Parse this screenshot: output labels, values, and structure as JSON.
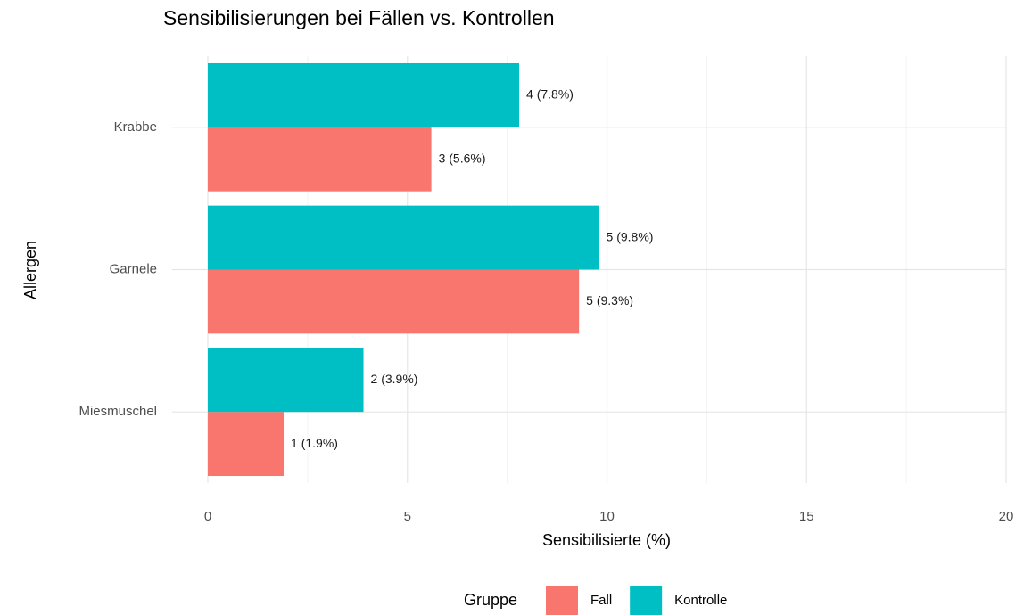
{
  "chart_data": {
    "type": "barh",
    "title": "Sensibilisierungen bei Fällen vs. Kontrollen",
    "x_label": "Sensibilisierte (%)",
    "y_label": "Allergen",
    "categories": [
      "Krabbe",
      "Garnele",
      "Miesmuschel"
    ],
    "series": [
      {
        "name": "Fall",
        "color": "#F8766D",
        "values": [
          5.6,
          9.3,
          1.9
        ],
        "value_labels": [
          "3 (5.6%)",
          "5 (9.3%)",
          "1 (1.9%)"
        ]
      },
      {
        "name": "Kontrolle",
        "color": "#00BFC4",
        "values": [
          7.8,
          9.8,
          3.9
        ],
        "value_labels": [
          "4 (7.8%)",
          "5 (9.8%)",
          "2 (3.9%)"
        ]
      }
    ],
    "xlim": [
      0,
      20
    ],
    "xticks": [
      0,
      5,
      10,
      15,
      20
    ],
    "x_minor_ticks": [
      2.5,
      7.5,
      12.5,
      17.5
    ],
    "grid": true,
    "legend_title": "Gruppe",
    "legend_position": "bottom"
  }
}
